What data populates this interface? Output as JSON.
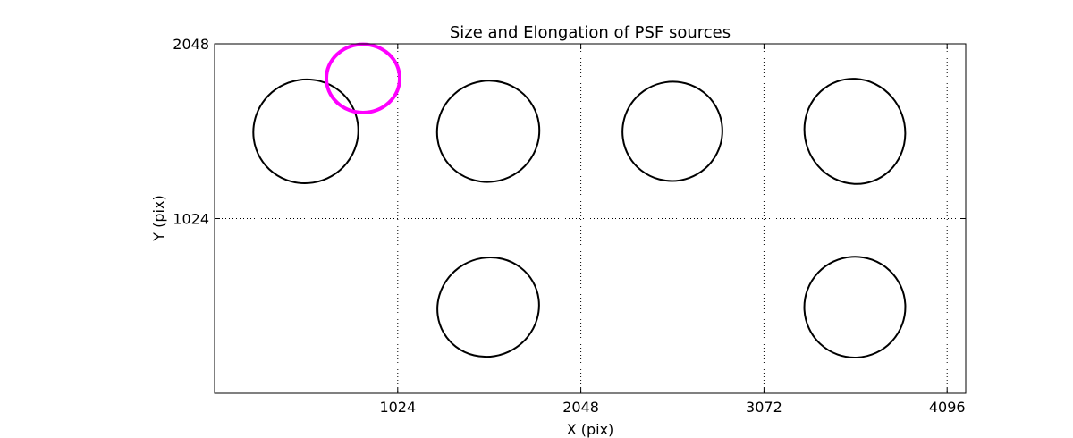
{
  "chart_data": {
    "type": "scatter",
    "title": "Size and Elongation of PSF sources",
    "xlabel": "X (pix)",
    "ylabel": "Y (pix)",
    "xlim": [
      0,
      4200
    ],
    "ylim": [
      0,
      2048
    ],
    "x_ticks": [
      1024,
      2048,
      3072,
      4096
    ],
    "y_ticks": [
      1024,
      2048
    ],
    "grid": true,
    "grid_style": "dotted",
    "shape": "ellipse",
    "series": [
      {
        "color": "#000000",
        "points": [
          {
            "x": 510,
            "y": 1535,
            "width": 590,
            "height": 605,
            "angle": -30
          },
          {
            "x": 1530,
            "y": 1535,
            "width": 575,
            "height": 590,
            "angle": -30
          },
          {
            "x": 2560,
            "y": 1535,
            "width": 560,
            "height": 580,
            "angle": -30
          },
          {
            "x": 3580,
            "y": 1535,
            "width": 560,
            "height": 620,
            "angle": -20
          },
          {
            "x": 1530,
            "y": 505,
            "width": 575,
            "height": 575,
            "angle": -30
          },
          {
            "x": 3580,
            "y": 505,
            "width": 565,
            "height": 590,
            "angle": -25
          }
        ]
      },
      {
        "color": "#ff00ff",
        "points": [
          {
            "x": 830,
            "y": 1845,
            "width": 410,
            "height": 400,
            "angle": 0
          }
        ]
      }
    ]
  }
}
